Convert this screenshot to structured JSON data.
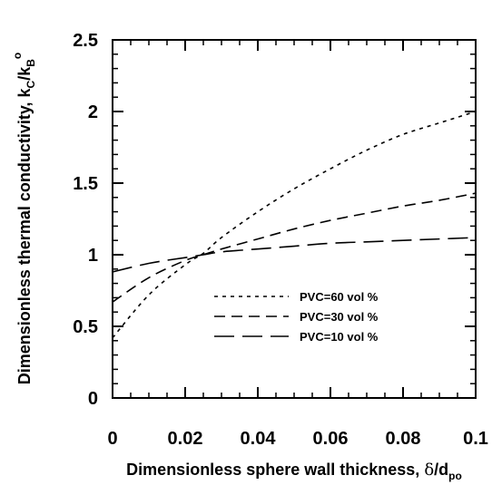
{
  "chart_data": {
    "type": "line",
    "title": "",
    "xlabel": {
      "main": "Dimensionless sphere wall thickness, ",
      "symbol": "δ",
      "rest": "/d",
      "sub": "po"
    },
    "ylabel": {
      "main": "Dimensionless thermal conductivity, k",
      "sub1": "C",
      "mid": "/k",
      "sub2": "B",
      "sup": "o"
    },
    "xlim": [
      0,
      0.1
    ],
    "ylim": [
      0,
      2.5
    ],
    "x_ticks": [
      0,
      0.02,
      0.04,
      0.06,
      0.08,
      0.1
    ],
    "x_tick_labels": [
      "0",
      "0.02",
      "0.04",
      "0.06",
      "0.08",
      "0.1"
    ],
    "y_ticks": [
      0,
      0.5,
      1,
      1.5,
      2,
      2.5
    ],
    "y_tick_labels": [
      "0",
      "0.5",
      "1",
      "1.5",
      "2",
      "2.5"
    ],
    "grid": false,
    "legend_position": "center-right",
    "series": [
      {
        "name": "PVC=60 vol %",
        "dash": "short",
        "x": [
          0,
          0.01,
          0.02,
          0.025,
          0.03,
          0.04,
          0.05,
          0.06,
          0.07,
          0.08,
          0.09,
          0.1
        ],
        "y": [
          0.42,
          0.72,
          0.93,
          1.01,
          1.12,
          1.3,
          1.46,
          1.6,
          1.73,
          1.84,
          1.92,
          2.0
        ]
      },
      {
        "name": "PVC=30 vol %",
        "dash": "medium",
        "x": [
          0,
          0.01,
          0.02,
          0.025,
          0.03,
          0.04,
          0.05,
          0.06,
          0.07,
          0.08,
          0.09,
          0.1
        ],
        "y": [
          0.67,
          0.84,
          0.96,
          1.0,
          1.04,
          1.11,
          1.18,
          1.24,
          1.29,
          1.34,
          1.38,
          1.43
        ]
      },
      {
        "name": "PVC=10 vol %",
        "dash": "long",
        "x": [
          0,
          0.01,
          0.02,
          0.025,
          0.03,
          0.04,
          0.05,
          0.06,
          0.07,
          0.08,
          0.09,
          0.1
        ],
        "y": [
          0.88,
          0.94,
          0.98,
          1.0,
          1.02,
          1.04,
          1.06,
          1.08,
          1.09,
          1.1,
          1.11,
          1.12
        ]
      }
    ]
  }
}
